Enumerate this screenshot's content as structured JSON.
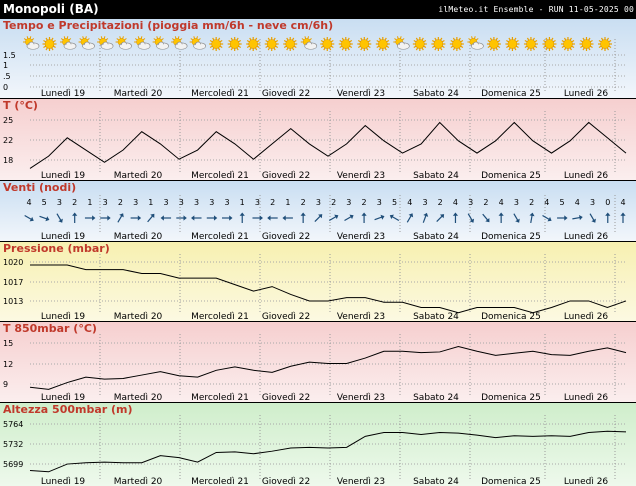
{
  "header": {
    "location": "Monopoli (BA)",
    "run_info": "ilMeteo.it Ensemble - RUN 11-05-2025 00"
  },
  "days": [
    "Lunedì 19",
    "Martedì 20",
    "Mercoledì 21",
    "Giovedì 22",
    "Venerdì 23",
    "Sabato 24",
    "Domenica 25",
    "Lunedì 26"
  ],
  "chart_data": [
    {
      "type": "line",
      "title": "Tempo e Precipitazioni (pioggia mm/6h - neve cm/6h)",
      "yticks": [
        "1.5",
        "1",
        ".5",
        "0"
      ],
      "ylim": [
        0,
        2
      ],
      "precip": [
        0,
        0,
        0,
        0,
        0,
        0,
        0,
        0,
        0,
        0,
        0,
        0,
        0,
        0,
        0,
        0,
        0,
        0,
        0,
        0,
        0,
        0,
        0,
        0,
        0,
        0,
        0,
        0,
        0,
        0,
        0,
        0
      ],
      "weather_icons": [
        "sun-cloud",
        "sun",
        "sun-cloud",
        "sun-cloud",
        "sun-cloud",
        "sun-cloud",
        "sun-cloud",
        "sun-cloud",
        "sun-cloud",
        "sun-cloud",
        "sun",
        "sun",
        "sun",
        "sun",
        "sun",
        "sun-cloud",
        "sun",
        "sun",
        "sun",
        "sun",
        "sun-cloud",
        "sun",
        "sun",
        "sun",
        "sun-cloud",
        "sun",
        "sun",
        "sun",
        "sun",
        "sun",
        "sun",
        "sun"
      ]
    },
    {
      "type": "line",
      "title": "T (°C)",
      "yticks": [
        "25",
        "22",
        "18"
      ],
      "ylim": [
        17,
        26
      ],
      "values": [
        17,
        19,
        22,
        20,
        18,
        20,
        23,
        21,
        18.5,
        20,
        23,
        21,
        18.5,
        21,
        23.5,
        21,
        19,
        21,
        24,
        21.5,
        19.5,
        21,
        24.5,
        21.5,
        19.5,
        21.5,
        24.5,
        21.5,
        19.5,
        21.5,
        24.5,
        22,
        19.5
      ]
    },
    {
      "type": "line",
      "title": "Venti (nodi)",
      "speeds": [
        4,
        5,
        3,
        2,
        1,
        3,
        2,
        3,
        1,
        3,
        3,
        3,
        3,
        3,
        1,
        3,
        2,
        1,
        2,
        3,
        2,
        3,
        2,
        3,
        5,
        4,
        3,
        2,
        4,
        3,
        2,
        4,
        3,
        2,
        4,
        5,
        4,
        3,
        0,
        4
      ],
      "directions_deg": [
        120,
        110,
        150,
        0,
        90,
        90,
        30,
        90,
        40,
        270,
        90,
        270,
        90,
        90,
        0,
        90,
        270,
        270,
        0,
        45,
        60,
        60,
        0,
        70,
        300,
        30,
        20,
        45,
        0,
        150,
        140,
        0,
        150,
        10,
        120,
        90,
        80,
        150,
        0,
        0
      ]
    },
    {
      "type": "line",
      "title": "Pressione (mbar)",
      "yticks": [
        "1020",
        "1017",
        "1013"
      ],
      "ylim": [
        1012,
        1021.5
      ],
      "values": [
        1019.5,
        1019.5,
        1019.5,
        1018.8,
        1018.8,
        1018.8,
        1018.2,
        1018.2,
        1017.5,
        1017.5,
        1017.5,
        1016.5,
        1015.5,
        1016.2,
        1015,
        1014,
        1014,
        1014.5,
        1014.5,
        1013.8,
        1013.8,
        1013,
        1013,
        1012.2,
        1013,
        1013,
        1013,
        1012.2,
        1013,
        1014,
        1014,
        1013,
        1014
      ]
    },
    {
      "type": "line",
      "title": "T 850mbar (°C)",
      "yticks": [
        "15",
        "12",
        "9"
      ],
      "ylim": [
        8,
        16
      ],
      "values": [
        8.5,
        8.2,
        9.2,
        10,
        9.7,
        9.8,
        10.3,
        10.8,
        10.2,
        10,
        11,
        11.5,
        11,
        10.7,
        11.6,
        12.2,
        12,
        12,
        12.8,
        13.8,
        13.8,
        13.6,
        13.7,
        14.5,
        13.8,
        13.2,
        13.5,
        13.8,
        13.3,
        13.2,
        13.8,
        14.3,
        13.6
      ]
    },
    {
      "type": "line",
      "title": "Altezza 500mbar (m)",
      "yticks": [
        "5764",
        "5732",
        "5699"
      ],
      "ylim": [
        5685,
        5772
      ],
      "values": [
        5692,
        5690,
        5702,
        5704,
        5705,
        5704,
        5704,
        5715,
        5712,
        5705,
        5720,
        5721,
        5718,
        5722,
        5727,
        5728,
        5727,
        5728,
        5745,
        5751,
        5751,
        5748,
        5751,
        5750,
        5747,
        5743,
        5746,
        5745,
        5746,
        5745,
        5751,
        5753,
        5752
      ]
    }
  ]
}
